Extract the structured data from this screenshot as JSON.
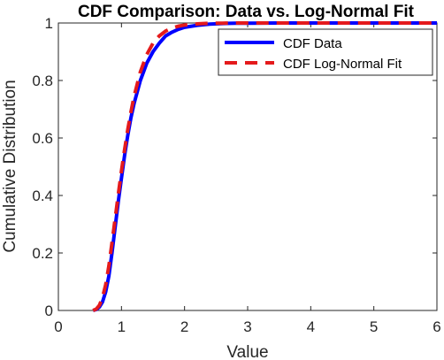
{
  "chart_data": {
    "type": "line",
    "title": "CDF Comparison: Data vs. Log-Normal Fit",
    "xlabel": "Value",
    "ylabel": "Cumulative Distribution",
    "xlim": [
      0,
      6
    ],
    "ylim": [
      0,
      1
    ],
    "xticks": [
      "0",
      "1",
      "2",
      "3",
      "4",
      "5",
      "6"
    ],
    "yticks": [
      "0",
      "0.2",
      "0.4",
      "0.6",
      "0.8",
      "1"
    ],
    "grid": false,
    "legend_position": "top-right",
    "series": [
      {
        "name": "CDF Data",
        "color": "#0000ff",
        "style": "solid",
        "x": [
          0.55,
          0.6,
          0.65,
          0.7,
          0.75,
          0.8,
          0.85,
          0.9,
          0.95,
          1.0,
          1.05,
          1.1,
          1.15,
          1.2,
          1.3,
          1.4,
          1.5,
          1.6,
          1.7,
          1.8,
          1.9,
          2.0,
          2.2,
          2.4,
          2.6,
          2.8,
          3.0,
          3.5,
          4.0,
          5.0,
          6.0
        ],
        "y": [
          0.0,
          0.003,
          0.012,
          0.03,
          0.065,
          0.12,
          0.2,
          0.29,
          0.38,
          0.46,
          0.54,
          0.61,
          0.67,
          0.72,
          0.8,
          0.86,
          0.9,
          0.93,
          0.955,
          0.968,
          0.978,
          0.985,
          0.992,
          0.996,
          0.998,
          0.999,
          0.9995,
          1.0,
          1.0,
          1.0,
          1.0
        ]
      },
      {
        "name": "CDF Log-Normal Fit",
        "color": "#e41a1c",
        "style": "dashed",
        "x": [
          0.55,
          0.6,
          0.65,
          0.7,
          0.75,
          0.8,
          0.85,
          0.9,
          0.95,
          1.0,
          1.05,
          1.1,
          1.15,
          1.2,
          1.3,
          1.4,
          1.5,
          1.6,
          1.7,
          1.8,
          1.9,
          2.0,
          2.2,
          2.4,
          2.6,
          2.8,
          3.0,
          3.5,
          4.0,
          5.0,
          6.0
        ],
        "y": [
          0.0,
          0.005,
          0.018,
          0.045,
          0.09,
          0.155,
          0.235,
          0.32,
          0.405,
          0.485,
          0.56,
          0.63,
          0.69,
          0.745,
          0.83,
          0.89,
          0.93,
          0.955,
          0.972,
          0.982,
          0.989,
          0.993,
          0.997,
          0.999,
          0.9995,
          1.0,
          1.0,
          1.0,
          1.0,
          1.0,
          1.0
        ]
      }
    ]
  }
}
